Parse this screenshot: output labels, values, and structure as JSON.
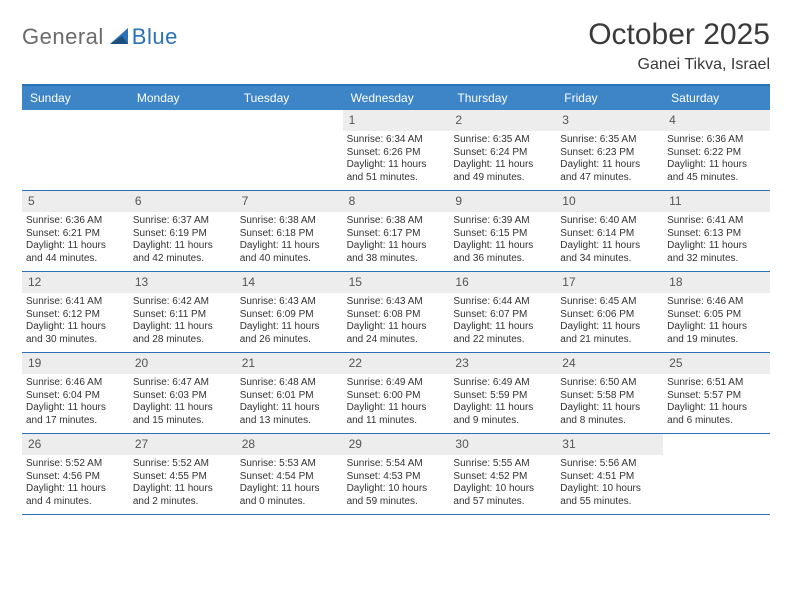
{
  "brand": {
    "part1": "General",
    "part2": "Blue"
  },
  "title": "October 2025",
  "location": "Ganei Tikva, Israel",
  "colors": {
    "header_bg": "#3d85c6",
    "accent_border": "#2a72b5",
    "daynum_bg": "#ededed",
    "text": "#333333",
    "logo_gray": "#6a6a6a",
    "background": "#ffffff"
  },
  "weekdays": [
    "Sunday",
    "Monday",
    "Tuesday",
    "Wednesday",
    "Thursday",
    "Friday",
    "Saturday"
  ],
  "weeks": [
    [
      {
        "n": "",
        "sr": "",
        "ss": "",
        "dl": ""
      },
      {
        "n": "",
        "sr": "",
        "ss": "",
        "dl": ""
      },
      {
        "n": "",
        "sr": "",
        "ss": "",
        "dl": ""
      },
      {
        "n": "1",
        "sr": "Sunrise: 6:34 AM",
        "ss": "Sunset: 6:26 PM",
        "dl": "Daylight: 11 hours and 51 minutes."
      },
      {
        "n": "2",
        "sr": "Sunrise: 6:35 AM",
        "ss": "Sunset: 6:24 PM",
        "dl": "Daylight: 11 hours and 49 minutes."
      },
      {
        "n": "3",
        "sr": "Sunrise: 6:35 AM",
        "ss": "Sunset: 6:23 PM",
        "dl": "Daylight: 11 hours and 47 minutes."
      },
      {
        "n": "4",
        "sr": "Sunrise: 6:36 AM",
        "ss": "Sunset: 6:22 PM",
        "dl": "Daylight: 11 hours and 45 minutes."
      }
    ],
    [
      {
        "n": "5",
        "sr": "Sunrise: 6:36 AM",
        "ss": "Sunset: 6:21 PM",
        "dl": "Daylight: 11 hours and 44 minutes."
      },
      {
        "n": "6",
        "sr": "Sunrise: 6:37 AM",
        "ss": "Sunset: 6:19 PM",
        "dl": "Daylight: 11 hours and 42 minutes."
      },
      {
        "n": "7",
        "sr": "Sunrise: 6:38 AM",
        "ss": "Sunset: 6:18 PM",
        "dl": "Daylight: 11 hours and 40 minutes."
      },
      {
        "n": "8",
        "sr": "Sunrise: 6:38 AM",
        "ss": "Sunset: 6:17 PM",
        "dl": "Daylight: 11 hours and 38 minutes."
      },
      {
        "n": "9",
        "sr": "Sunrise: 6:39 AM",
        "ss": "Sunset: 6:15 PM",
        "dl": "Daylight: 11 hours and 36 minutes."
      },
      {
        "n": "10",
        "sr": "Sunrise: 6:40 AM",
        "ss": "Sunset: 6:14 PM",
        "dl": "Daylight: 11 hours and 34 minutes."
      },
      {
        "n": "11",
        "sr": "Sunrise: 6:41 AM",
        "ss": "Sunset: 6:13 PM",
        "dl": "Daylight: 11 hours and 32 minutes."
      }
    ],
    [
      {
        "n": "12",
        "sr": "Sunrise: 6:41 AM",
        "ss": "Sunset: 6:12 PM",
        "dl": "Daylight: 11 hours and 30 minutes."
      },
      {
        "n": "13",
        "sr": "Sunrise: 6:42 AM",
        "ss": "Sunset: 6:11 PM",
        "dl": "Daylight: 11 hours and 28 minutes."
      },
      {
        "n": "14",
        "sr": "Sunrise: 6:43 AM",
        "ss": "Sunset: 6:09 PM",
        "dl": "Daylight: 11 hours and 26 minutes."
      },
      {
        "n": "15",
        "sr": "Sunrise: 6:43 AM",
        "ss": "Sunset: 6:08 PM",
        "dl": "Daylight: 11 hours and 24 minutes."
      },
      {
        "n": "16",
        "sr": "Sunrise: 6:44 AM",
        "ss": "Sunset: 6:07 PM",
        "dl": "Daylight: 11 hours and 22 minutes."
      },
      {
        "n": "17",
        "sr": "Sunrise: 6:45 AM",
        "ss": "Sunset: 6:06 PM",
        "dl": "Daylight: 11 hours and 21 minutes."
      },
      {
        "n": "18",
        "sr": "Sunrise: 6:46 AM",
        "ss": "Sunset: 6:05 PM",
        "dl": "Daylight: 11 hours and 19 minutes."
      }
    ],
    [
      {
        "n": "19",
        "sr": "Sunrise: 6:46 AM",
        "ss": "Sunset: 6:04 PM",
        "dl": "Daylight: 11 hours and 17 minutes."
      },
      {
        "n": "20",
        "sr": "Sunrise: 6:47 AM",
        "ss": "Sunset: 6:03 PM",
        "dl": "Daylight: 11 hours and 15 minutes."
      },
      {
        "n": "21",
        "sr": "Sunrise: 6:48 AM",
        "ss": "Sunset: 6:01 PM",
        "dl": "Daylight: 11 hours and 13 minutes."
      },
      {
        "n": "22",
        "sr": "Sunrise: 6:49 AM",
        "ss": "Sunset: 6:00 PM",
        "dl": "Daylight: 11 hours and 11 minutes."
      },
      {
        "n": "23",
        "sr": "Sunrise: 6:49 AM",
        "ss": "Sunset: 5:59 PM",
        "dl": "Daylight: 11 hours and 9 minutes."
      },
      {
        "n": "24",
        "sr": "Sunrise: 6:50 AM",
        "ss": "Sunset: 5:58 PM",
        "dl": "Daylight: 11 hours and 8 minutes."
      },
      {
        "n": "25",
        "sr": "Sunrise: 6:51 AM",
        "ss": "Sunset: 5:57 PM",
        "dl": "Daylight: 11 hours and 6 minutes."
      }
    ],
    [
      {
        "n": "26",
        "sr": "Sunrise: 5:52 AM",
        "ss": "Sunset: 4:56 PM",
        "dl": "Daylight: 11 hours and 4 minutes."
      },
      {
        "n": "27",
        "sr": "Sunrise: 5:52 AM",
        "ss": "Sunset: 4:55 PM",
        "dl": "Daylight: 11 hours and 2 minutes."
      },
      {
        "n": "28",
        "sr": "Sunrise: 5:53 AM",
        "ss": "Sunset: 4:54 PM",
        "dl": "Daylight: 11 hours and 0 minutes."
      },
      {
        "n": "29",
        "sr": "Sunrise: 5:54 AM",
        "ss": "Sunset: 4:53 PM",
        "dl": "Daylight: 10 hours and 59 minutes."
      },
      {
        "n": "30",
        "sr": "Sunrise: 5:55 AM",
        "ss": "Sunset: 4:52 PM",
        "dl": "Daylight: 10 hours and 57 minutes."
      },
      {
        "n": "31",
        "sr": "Sunrise: 5:56 AM",
        "ss": "Sunset: 4:51 PM",
        "dl": "Daylight: 10 hours and 55 minutes."
      },
      {
        "n": "",
        "sr": "",
        "ss": "",
        "dl": ""
      }
    ]
  ]
}
